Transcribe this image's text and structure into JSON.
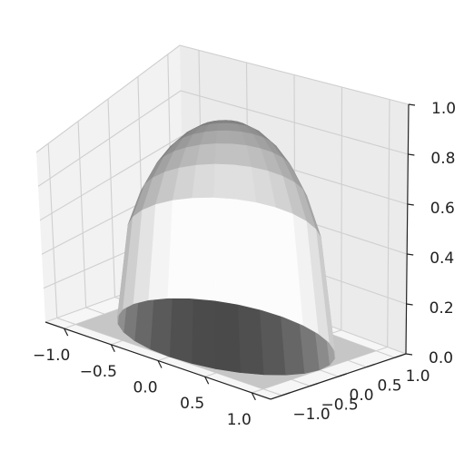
{
  "chart_data": {
    "type": "surface3d",
    "title": "",
    "xlabel": "",
    "ylabel": "",
    "zlabel": "",
    "surface": "hemisphere z = sqrt(1 - x^2 - y^2), 0 outside the unit disk",
    "colormap": "grayscale, dark at the top, light at the base",
    "grid": true,
    "xlim": [
      -1.2,
      1.2
    ],
    "ylim": [
      -1.2,
      1.2
    ],
    "zlim": [
      0.0,
      1.0
    ],
    "x_ticks": [
      "−1.0",
      "−0.5",
      "0.0",
      "0.5",
      "1.0"
    ],
    "y_ticks": [
      "−1.0",
      "−0.5",
      "0.0",
      "0.5",
      "1.0"
    ],
    "z_ticks": [
      "0.0",
      "0.2",
      "0.4",
      "0.6",
      "0.8",
      "1.0"
    ],
    "x_tick_values": [
      -1.0,
      -0.5,
      0.0,
      0.5,
      1.0
    ],
    "y_tick_values": [
      -1.0,
      -0.5,
      0.0,
      0.5,
      1.0
    ],
    "z_tick_values": [
      0.0,
      0.2,
      0.4,
      0.6,
      0.8,
      1.0
    ],
    "radius": 1.0,
    "peak": 1.0
  }
}
